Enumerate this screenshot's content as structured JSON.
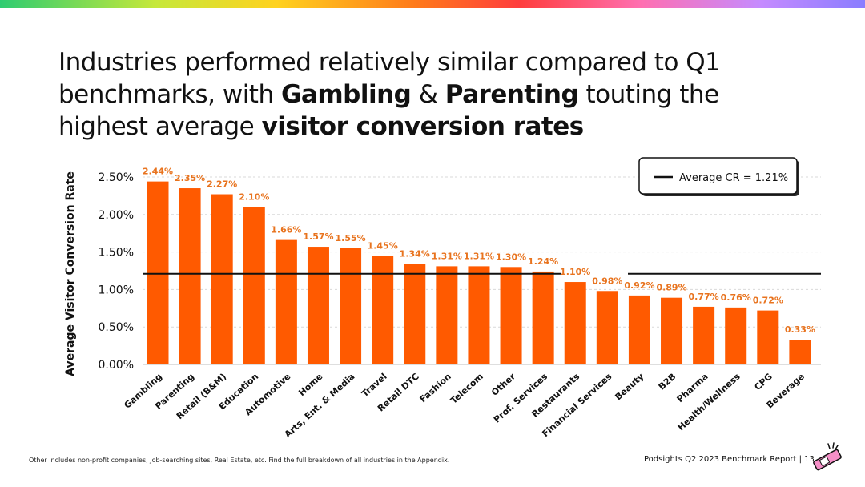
{
  "colors": {
    "bar": "#ff5a00",
    "label": "#e8731e",
    "avg_line": "#111111",
    "grid": "#d9d9d9"
  },
  "headline": {
    "p1": "Industries performed relatively similar compared to Q1 benchmarks, with ",
    "b1": "Gambling",
    "p2": " & ",
    "b2": "Parenting",
    "p3": " touting the highest average ",
    "b3": "visitor conversion rates"
  },
  "chart_data": {
    "type": "bar",
    "ylabel": "Average Visitor Conversion Rate",
    "ylim": [
      0,
      0.025
    ],
    "yticks": [
      "0.00%",
      "0.50%",
      "1.00%",
      "1.50%",
      "2.00%",
      "2.50%"
    ],
    "yticks_values": [
      0,
      0.005,
      0.01,
      0.015,
      0.02,
      0.025
    ],
    "grid": true,
    "legend": {
      "position": "top-right",
      "label": "Average CR = 1.21%"
    },
    "average": 0.0121,
    "categories": [
      "Gambling",
      "Parenting",
      "Retail (B&M)",
      "Education",
      "Automotive",
      "Home",
      "Arts, Ent. & Media",
      "Travel",
      "Retail DTC",
      "Fashion",
      "Telecom",
      "Other",
      "Prof. Services",
      "Restaurants",
      "Financial Services",
      "Beauty",
      "B2B",
      "Pharma",
      "Health/Wellness",
      "CPG",
      "Beverage"
    ],
    "values": [
      0.0244,
      0.0235,
      0.0227,
      0.021,
      0.0166,
      0.0157,
      0.0155,
      0.0145,
      0.0134,
      0.0131,
      0.0131,
      0.013,
      0.0124,
      0.011,
      0.0098,
      0.0092,
      0.0089,
      0.0077,
      0.0076,
      0.0072,
      0.0033
    ],
    "data_labels": [
      "2.44%",
      "2.35%",
      "2.27%",
      "2.10%",
      "1.66%",
      "1.57%",
      "1.55%",
      "1.45%",
      "1.34%",
      "1.31%",
      "1.31%",
      "1.30%",
      "1.24%",
      "1.10%",
      "0.98%",
      "0.92%",
      "0.89%",
      "0.77%",
      "0.76%",
      "0.72%",
      "0.33%"
    ]
  },
  "footer": {
    "footnote": "Other includes non-profit companies, Job-searching sites, Real Estate, etc. Find the full breakdown of all industries in the Appendix.",
    "report": "Podsights Q2 2023 Benchmark Report | 13"
  }
}
